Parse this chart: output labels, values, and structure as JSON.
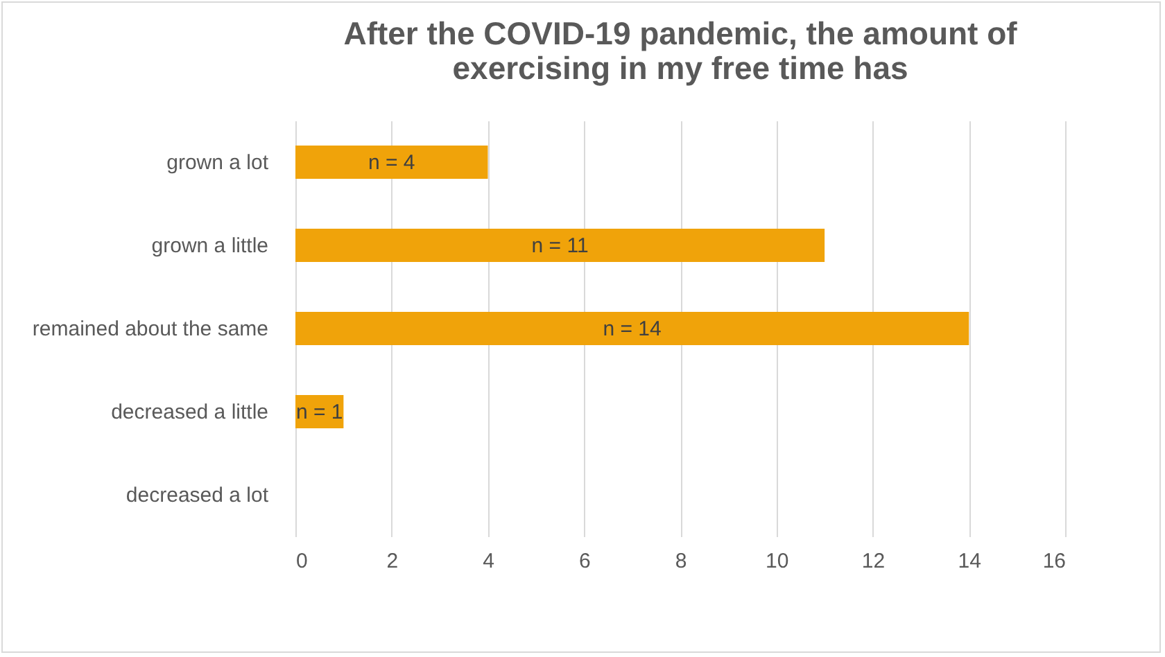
{
  "chart_data": {
    "type": "bar",
    "orientation": "horizontal",
    "title": "After the COVID-19 pandemic, the amount of exercising in my free time has",
    "categories": [
      "grown a lot",
      "grown a little",
      "remained about the same",
      "decreased a little",
      "decreased a lot"
    ],
    "values": [
      4,
      11,
      14,
      1,
      0
    ],
    "value_labels": [
      "n = 4",
      "n = 11",
      "n = 14",
      "n = 1",
      null
    ],
    "color": "#f0a30a",
    "xlim": [
      0,
      16
    ],
    "xticks": [
      0,
      2,
      4,
      6,
      8,
      10,
      12,
      14,
      16
    ],
    "grid": "x"
  }
}
